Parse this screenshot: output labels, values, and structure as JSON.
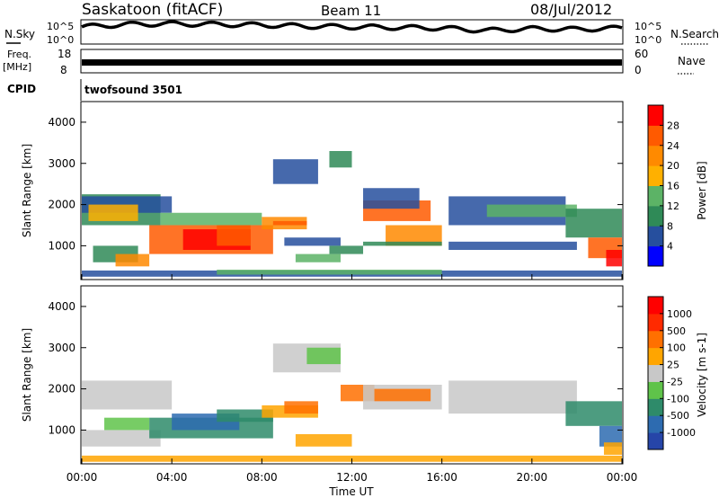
{
  "header": {
    "station": "Saskatoon (fitACF)",
    "beam": "Beam 11",
    "date": "08/Jul/2012"
  },
  "left_labels": {
    "nsky": "N.Sky",
    "freq": "Freq.",
    "freq_unit": "[MHz]",
    "cpid": "CPID"
  },
  "right_labels": {
    "nsearch": "N.Search",
    "nave": "Nave"
  },
  "cpid_value": "twofsound 3501",
  "colors": {
    "power_scale": [
      "#0000ff",
      "#264f9e",
      "#2f8a57",
      "#5cb366",
      "#ffb000",
      "#ff8a00",
      "#ff5a00",
      "#ff0000"
    ],
    "velocity_scale": [
      "#2645a8",
      "#2d6bb0",
      "#2e8b6a",
      "#5fc34a",
      "#c8c8c8",
      "#ffa500",
      "#ff7000",
      "#ff2a00",
      "#ff0000"
    ]
  },
  "chart_data": [
    {
      "type": "line",
      "name": "N.Sky / N.Search noise",
      "ylabel_left_ticks": [
        "10^5",
        "10^0"
      ],
      "ylabel_right_ticks": [
        "10^5",
        "10^0"
      ],
      "x": [
        "00:00",
        "02:00",
        "04:00",
        "06:00",
        "08:00",
        "10:00",
        "12:00",
        "14:00",
        "16:00",
        "18:00",
        "20:00",
        "22:00",
        "24:00"
      ],
      "series": [
        {
          "values": [
            2.2,
            2.6,
            2.7,
            2.6,
            2.5,
            2.3,
            2.2,
            2.1,
            2.0,
            1.6,
            1.9,
            1.8,
            2.0
          ]
        }
      ]
    },
    {
      "type": "line",
      "name": "Frequency / Nave",
      "left_ticks": [
        "18",
        "8"
      ],
      "right_ticks": [
        "60",
        "0"
      ],
      "x": [
        "00:00",
        "24:00"
      ],
      "series": [
        {
          "values": [
            10.5,
            10.5
          ]
        }
      ]
    },
    {
      "type": "heatmap",
      "ylabel": "Slant Range [km]",
      "yticks": [
        1000,
        2000,
        3000,
        4000
      ],
      "ylim": [
        180,
        4500
      ],
      "colorbar_label": "Power [dB]",
      "colorbar_ticks": [
        4,
        8,
        12,
        16,
        20,
        24,
        28
      ]
    },
    {
      "type": "heatmap",
      "ylabel": "Slant Range [km]",
      "yticks": [
        1000,
        2000,
        3000,
        4000
      ],
      "ylim": [
        180,
        4500
      ],
      "colorbar_label": "Velocity [m s-1]",
      "colorbar_ticks": [
        1000,
        500,
        100,
        25,
        -25,
        -100,
        -500,
        -1000
      ],
      "xlabel": "Time UT",
      "xticks": [
        "00:00",
        "04:00",
        "08:00",
        "12:00",
        "16:00",
        "20:00",
        "00:00"
      ]
    }
  ]
}
